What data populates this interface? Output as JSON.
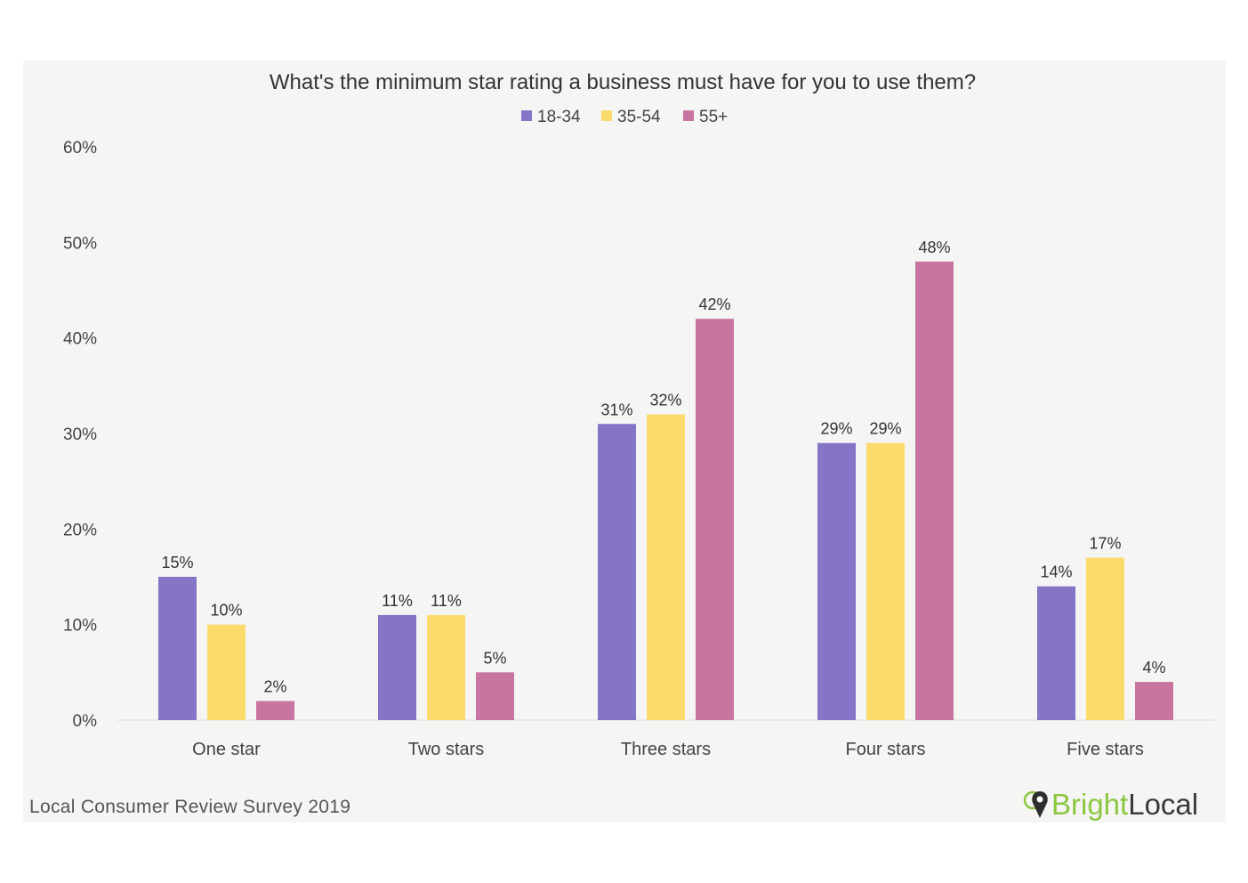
{
  "chart_data": {
    "type": "bar",
    "title": "What's the minimum star rating a business must have for you to use them?",
    "categories": [
      "One star",
      "Two stars",
      "Three stars",
      "Four stars",
      "Five stars"
    ],
    "series": [
      {
        "name": "18-34",
        "color": "#8674c6",
        "values": [
          15,
          11,
          31,
          29,
          14
        ],
        "labels": [
          "15%",
          "11%",
          "31%",
          "29%",
          "14%"
        ]
      },
      {
        "name": "35-54",
        "color": "#fbdb6c",
        "values": [
          10,
          11,
          32,
          29,
          17
        ],
        "labels": [
          "10%",
          "11%",
          "32%",
          "29%",
          "17%"
        ]
      },
      {
        "name": "55+",
        "color": "#c975a1",
        "values": [
          2,
          5,
          42,
          48,
          4
        ],
        "labels": [
          "2%",
          "5%",
          "42%",
          "48%",
          "4%"
        ]
      }
    ],
    "ylim": [
      0,
      60
    ],
    "yticks": [
      0,
      10,
      20,
      30,
      40,
      50,
      60
    ],
    "ytick_labels": [
      "0%",
      "10%",
      "20%",
      "30%",
      "40%",
      "50%",
      "60%"
    ],
    "legend_position": "top-center",
    "grid": false
  },
  "footer": {
    "source": "Local Consumer Review Survey 2019",
    "logo_bright": "Bright",
    "logo_local": "Local"
  },
  "colors": {
    "logo_green": "#8cc63f",
    "background": "#f5f5f4"
  },
  "icons": {
    "logo": "map-pin-icon"
  }
}
